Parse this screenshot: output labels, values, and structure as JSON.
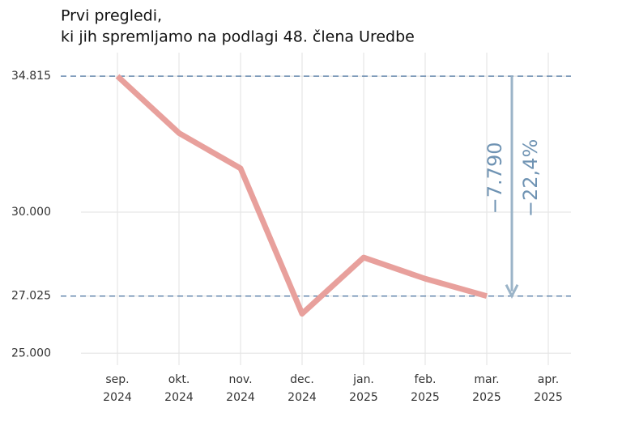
{
  "chart_data": {
    "type": "line",
    "title": "Prvi pregledi,",
    "subtitle": "ki jih spremljamo na podlagi 48. člena Uredbe",
    "categories": [
      "sep. 2024",
      "okt. 2024",
      "nov. 2024",
      "dec. 2024",
      "jan. 2025",
      "feb. 2025",
      "mar. 2025",
      "apr. 2025"
    ],
    "values": [
      34815,
      32800,
      31550,
      26400,
      28390,
      27640,
      27025,
      null
    ],
    "color": "#e8a09c",
    "ylim": [
      24750,
      35650
    ],
    "yticks": [
      {
        "value": 25000,
        "label": "25.000"
      },
      {
        "value": 27025,
        "label": "27.025"
      },
      {
        "value": 30000,
        "label": "30.000"
      },
      {
        "value": 34815,
        "label": "34.815"
      }
    ],
    "reference_lines": [
      34815,
      27025
    ],
    "annotations": [
      "−7.790",
      "−22,4%"
    ],
    "grid": true
  }
}
